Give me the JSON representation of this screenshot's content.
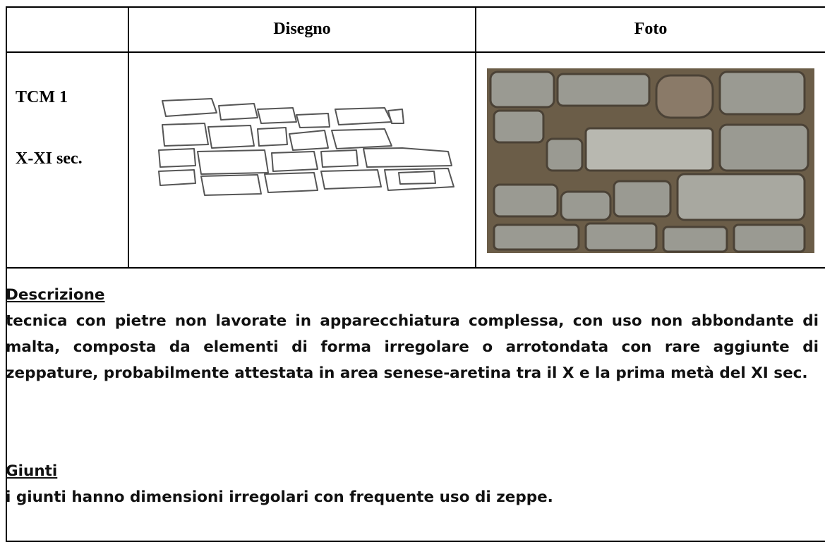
{
  "table": {
    "header": [
      "Disegno",
      "Foto"
    ],
    "row": {
      "label": "TCM 1",
      "date": "X-XI sec."
    }
  },
  "sections": [
    {
      "heading": "Descrizione",
      "text": "tecnica con pietre non lavorate in apparecchiatura complessa, con uso non abbondante di malta, composta da elementi di forma irregolare o arrotondata con rare aggiunte di zeppature, probabilmente attestata in area senese-aretina tra il X e la prima metà del XI sec."
    },
    {
      "heading": "Giunti",
      "text": "i giunti hanno dimensioni irregolari con frequente uso di zeppe."
    }
  ]
}
